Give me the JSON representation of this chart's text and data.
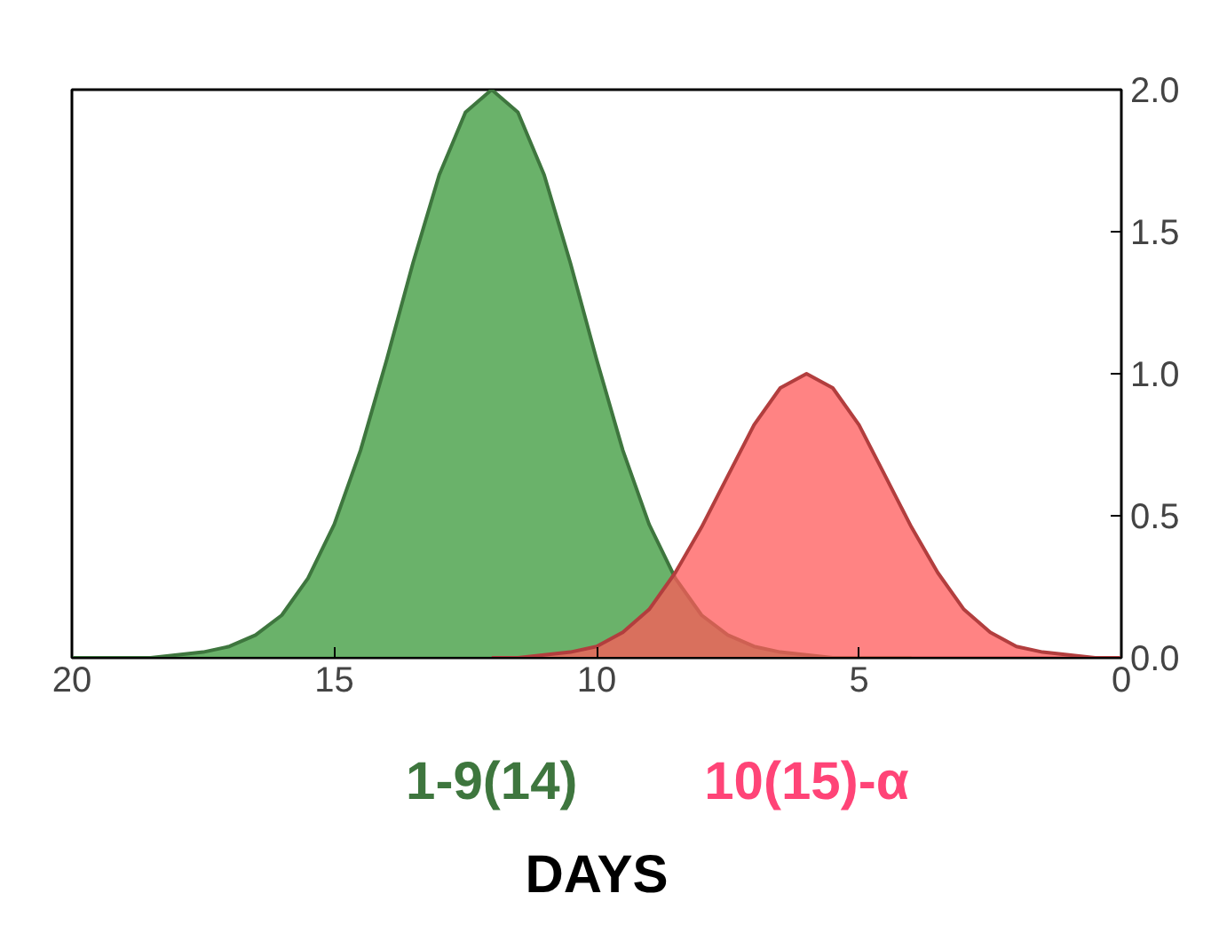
{
  "chart_data": {
    "type": "area",
    "xlabel": "DAYS",
    "xlim": [
      20,
      0
    ],
    "ylim": [
      0,
      2.0
    ],
    "xticks": [
      20,
      15,
      10,
      5,
      0
    ],
    "yticks": [
      {
        "value": 0,
        "label": "0.0"
      },
      {
        "value": 0.5,
        "label": "0.5"
      },
      {
        "value": 1.0,
        "label": "1.0"
      },
      {
        "value": 1.5,
        "label": "1.5"
      },
      {
        "value": 2.0,
        "label": "2.0"
      }
    ],
    "grid": false,
    "legend": false,
    "series": [
      {
        "name": "1-9(14)",
        "color": "#5aaa5a",
        "x": [
          4,
          5,
          5.5,
          6,
          6.5,
          7,
          7.5,
          8,
          8.5,
          9,
          9.5,
          10,
          10.5,
          11,
          11.5,
          12,
          12.5,
          13,
          13.5,
          14,
          14.5,
          15,
          15.5,
          16,
          16.5,
          17,
          17.5,
          18,
          18.5,
          19,
          20
        ],
        "values": [
          0,
          0.0,
          0.0,
          0.01,
          0.02,
          0.04,
          0.08,
          0.15,
          0.28,
          0.47,
          0.73,
          1.05,
          1.39,
          1.7,
          1.92,
          2.0,
          1.92,
          1.7,
          1.39,
          1.05,
          0.73,
          0.47,
          0.28,
          0.15,
          0.08,
          0.04,
          0.02,
          0.01,
          0.0,
          0.0,
          0
        ]
      },
      {
        "name": "10(15)-α",
        "color": "#ff5a5a",
        "x": [
          0,
          0.5,
          1,
          1.5,
          2,
          2.5,
          3,
          3.5,
          4,
          4.5,
          5,
          5.5,
          6,
          6.5,
          7,
          7.5,
          8,
          8.5,
          9,
          9.5,
          10,
          10.5,
          11,
          11.5,
          12
        ],
        "values": [
          0,
          0.0,
          0.01,
          0.02,
          0.04,
          0.09,
          0.17,
          0.3,
          0.46,
          0.64,
          0.82,
          0.95,
          1.0,
          0.95,
          0.82,
          0.64,
          0.46,
          0.3,
          0.17,
          0.09,
          0.04,
          0.02,
          0.01,
          0.0,
          0
        ]
      }
    ]
  }
}
